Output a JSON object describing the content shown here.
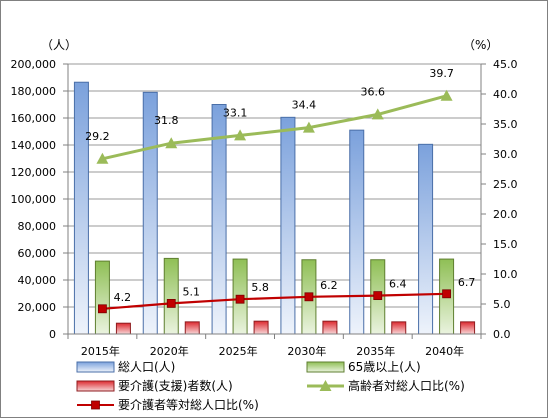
{
  "chart_data": {
    "type": "bar",
    "categories": [
      "2015年",
      "2020年",
      "2025年",
      "2030年",
      "2035年",
      "2040年"
    ],
    "y_left": {
      "unit": "（人）",
      "range": [
        0,
        200000
      ],
      "ticks": [
        "0",
        "20,000",
        "40,000",
        "60,000",
        "80,000",
        "100,000",
        "120,000",
        "140,000",
        "160,000",
        "180,000",
        "200,000"
      ]
    },
    "y_right": {
      "unit": "（%）",
      "range": [
        0,
        45
      ],
      "ticks": [
        "0.0",
        "5.0",
        "10.0",
        "15.0",
        "20.0",
        "25.0",
        "30.0",
        "35.0",
        "40.0",
        "45.0"
      ]
    },
    "grid": true,
    "legend_position": "bottom",
    "series": [
      {
        "name": "総人口(人)",
        "kind": "bar",
        "axis": "left",
        "color": "#7aa0d8",
        "values": [
          186500,
          179000,
          170000,
          160500,
          151000,
          140500
        ]
      },
      {
        "name": "65歳以上(人)",
        "kind": "bar",
        "axis": "left",
        "color": "#9bbb59",
        "values": [
          54000,
          56000,
          55500,
          55000,
          55000,
          55500
        ]
      },
      {
        "name": "要介護(支援)者数(人)",
        "kind": "bar",
        "axis": "left",
        "color": "#d9363c",
        "values": [
          8000,
          9000,
          9500,
          9500,
          9000,
          9000
        ]
      },
      {
        "name": "高齢者対総人口比(%)",
        "kind": "line",
        "axis": "right",
        "color": "#9bbb59",
        "marker": "triangle",
        "values": [
          29.2,
          31.8,
          33.1,
          34.4,
          36.6,
          39.7
        ],
        "labels": [
          "29.2",
          "31.8",
          "33.1",
          "34.4",
          "36.6",
          "39.7"
        ]
      },
      {
        "name": "要介護者等対総人口比(%)",
        "kind": "line",
        "axis": "right",
        "color": "#c00000",
        "marker": "square",
        "values": [
          4.2,
          5.1,
          5.8,
          6.2,
          6.4,
          6.7
        ],
        "labels": [
          "4.2",
          "5.1",
          "5.8",
          "6.2",
          "6.4",
          "6.7"
        ]
      }
    ]
  }
}
